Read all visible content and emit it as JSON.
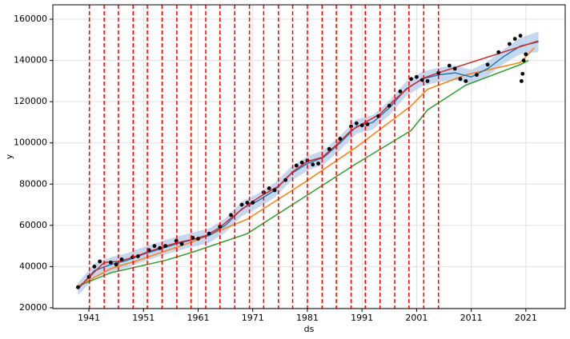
{
  "chart_data": {
    "type": "forecast",
    "xlabel": "ds",
    "ylabel": "y",
    "xlim": [
      1934.4,
      2028.2
    ],
    "xticks": [
      1941,
      1951,
      1961,
      1971,
      1981,
      1991,
      2001,
      2011,
      2021
    ],
    "ylim": [
      19600,
      167000
    ],
    "yticks": [
      20000,
      40000,
      60000,
      80000,
      100000,
      120000,
      140000,
      160000
    ],
    "grid": true,
    "changepoints": [
      1941.1,
      1943.8,
      1946.4,
      1949.1,
      1951.7,
      1954.4,
      1957.1,
      1959.7,
      1962.4,
      1965.0,
      1967.7,
      1970.4,
      1973.0,
      1975.7,
      1978.3,
      1981.0,
      1983.7,
      1986.3,
      1989.0,
      1991.6,
      1994.3,
      1997.0,
      1999.6,
      2002.3,
      2005.0
    ],
    "changepoint_color": "#ff0000",
    "band": {
      "color": "#aec7e8",
      "x": [
        1939,
        1942,
        1945,
        1948,
        1951,
        1954,
        1957,
        1960,
        1963,
        1966,
        1969,
        1972,
        1975,
        1978,
        1981,
        1984,
        1987,
        1990,
        1993,
        1996,
        1999,
        2002,
        2005,
        2008,
        2011,
        2014,
        2017,
        2020,
        2023.3
      ],
      "lower": [
        26000,
        34500,
        37500,
        39500,
        42500,
        45000,
        47500,
        49500,
        51500,
        56500,
        64500,
        68500,
        73500,
        81500,
        86500,
        89500,
        96500,
        104500,
        106500,
        113500,
        122500,
        127500,
        129500,
        130500,
        128500,
        132500,
        138500,
        143000,
        144000
      ],
      "upper": [
        32000,
        41500,
        44500,
        46500,
        49500,
        52000,
        54500,
        56500,
        58500,
        63500,
        71500,
        75500,
        80500,
        88500,
        93500,
        96500,
        103500,
        111500,
        113500,
        120500,
        129500,
        134500,
        136500,
        137500,
        135500,
        139500,
        145500,
        151000,
        154000
      ]
    },
    "series": [
      {
        "kind": "line",
        "color": "#2ca02c",
        "x": [
          1939,
          1945,
          1955,
          1960,
          1970,
          1980,
          1990,
          2000,
          2003,
          2010,
          2020,
          2021.5
        ],
        "values": [
          30500,
          37000,
          43000,
          47000,
          56000,
          73000,
          90000,
          106000,
          116000,
          128000,
          138000,
          140000
        ]
      },
      {
        "kind": "line",
        "color": "#ff7f0e",
        "x": [
          1939,
          1945,
          1950,
          1960,
          1970,
          1980,
          1990,
          2000,
          2003,
          2010,
          2020,
          2022.5
        ],
        "values": [
          30500,
          39000,
          43000,
          52000,
          63000,
          80000,
          98000,
          118000,
          126000,
          133000,
          139000,
          146000
        ]
      },
      {
        "kind": "line",
        "color": "#1f77b4",
        "x": [
          1939,
          1942,
          1945,
          1948,
          1951,
          1954,
          1957,
          1960,
          1963,
          1966,
          1969,
          1972,
          1975,
          1978,
          1981,
          1984,
          1987,
          1990,
          1993,
          1996,
          1999,
          2002,
          2005,
          2008,
          2011,
          2014,
          2017,
          2020,
          2023.3
        ],
        "values": [
          29000,
          38000,
          41000,
          43000,
          46000,
          48500,
          51000,
          53000,
          55000,
          60000,
          68000,
          72000,
          77000,
          85000,
          90000,
          93000,
          100000,
          108000,
          110000,
          117000,
          126000,
          131000,
          133000,
          134000,
          132000,
          136000,
          142000,
          147000,
          149000
        ]
      },
      {
        "kind": "line",
        "color": "#d62728",
        "x": [
          1939,
          1941.1,
          1943.8,
          1946.4,
          1949.1,
          1951.7,
          1954.4,
          1957.1,
          1959.7,
          1962.4,
          1965.0,
          1967.7,
          1970.4,
          1973.0,
          1975.7,
          1978.3,
          1981.0,
          1983.7,
          1986.3,
          1989.0,
          1991.6,
          1994.3,
          1997.0,
          1999.6,
          2002.3,
          2005.0,
          2023.3
        ],
        "values": [
          29500,
          35000,
          42000,
          42500,
          44500,
          47000,
          49500,
          51500,
          53000,
          55000,
          59000,
          65000,
          70500,
          75000,
          79000,
          86000,
          91000,
          93000,
          99000,
          106000,
          110000,
          114000,
          121000,
          127000,
          131500,
          134000,
          149500
        ]
      },
      {
        "kind": "scatter",
        "color": "#000000",
        "x": [
          1939,
          1941,
          1942,
          1943,
          1945,
          1946,
          1947,
          1949,
          1950,
          1952,
          1953,
          1954,
          1955,
          1957,
          1958,
          1960,
          1961,
          1963,
          1965,
          1967,
          1969,
          1970,
          1971,
          1973,
          1974,
          1975,
          1977,
          1979,
          1980,
          1981,
          1982,
          1983,
          1985,
          1987,
          1989,
          1990,
          1991,
          1992,
          1994,
          1996,
          1998,
          2000,
          2001,
          2002,
          2003,
          2005,
          2007,
          2008,
          2009,
          2010,
          2012,
          2014,
          2016,
          2018,
          2019,
          2020,
          2020.2,
          2020.4,
          2020.6,
          2021
        ],
        "values": [
          30000,
          35000,
          40000,
          42500,
          42000,
          41000,
          43500,
          44500,
          45000,
          48000,
          50000,
          49000,
          50000,
          52500,
          51000,
          54000,
          53500,
          56000,
          59500,
          65000,
          70000,
          71000,
          71000,
          76000,
          78000,
          77000,
          82000,
          89000,
          90500,
          91500,
          89500,
          90000,
          97000,
          102000,
          108000,
          109500,
          108500,
          109000,
          113000,
          118000,
          125000,
          131000,
          132000,
          130500,
          130000,
          134000,
          137500,
          136000,
          131000,
          130000,
          133000,
          138000,
          144000,
          148000,
          150500,
          152000,
          130000,
          133500,
          140000,
          143000
        ]
      }
    ]
  }
}
